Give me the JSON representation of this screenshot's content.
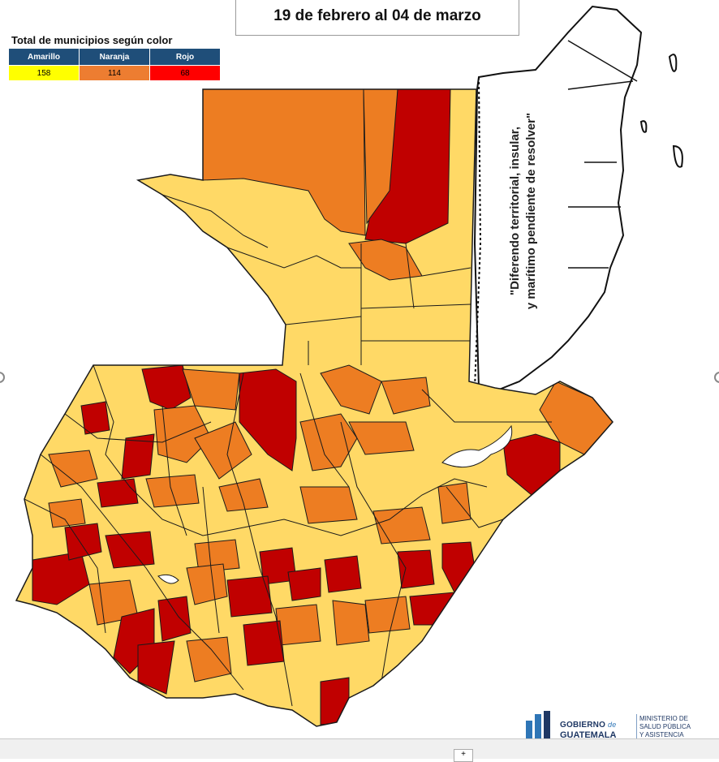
{
  "title": "19 de febrero al 04 de marzo",
  "legend": {
    "title": "Total de municipios según color",
    "categories": [
      {
        "label": "Amarillo",
        "count": "158",
        "color": "#ffff00"
      },
      {
        "label": "Naranja",
        "count": "114",
        "color": "#ed7d31"
      },
      {
        "label": "Rojo",
        "count": "68",
        "color": "#ff0000"
      }
    ]
  },
  "dispute_note": {
    "line1": "\"Diferendo territorial, insular,",
    "line2": "y marítimo pendiente de resolver\""
  },
  "logo": {
    "gobierno": "GOBIERNO",
    "de": "de",
    "country": "GUATEMALA",
    "ministry_line1": "MINISTERIO DE",
    "ministry_line2": "SALUD PÚBLICA",
    "ministry_line3": "Y ASISTENCIA"
  },
  "map_colors": {
    "amarillo_fill": "#ffd966",
    "naranja_fill": "#ed7d22",
    "rojo_fill": "#c00000",
    "lake_fill": "#ffffff",
    "border": "#1a1a1a"
  },
  "footer": {
    "button": "+"
  }
}
